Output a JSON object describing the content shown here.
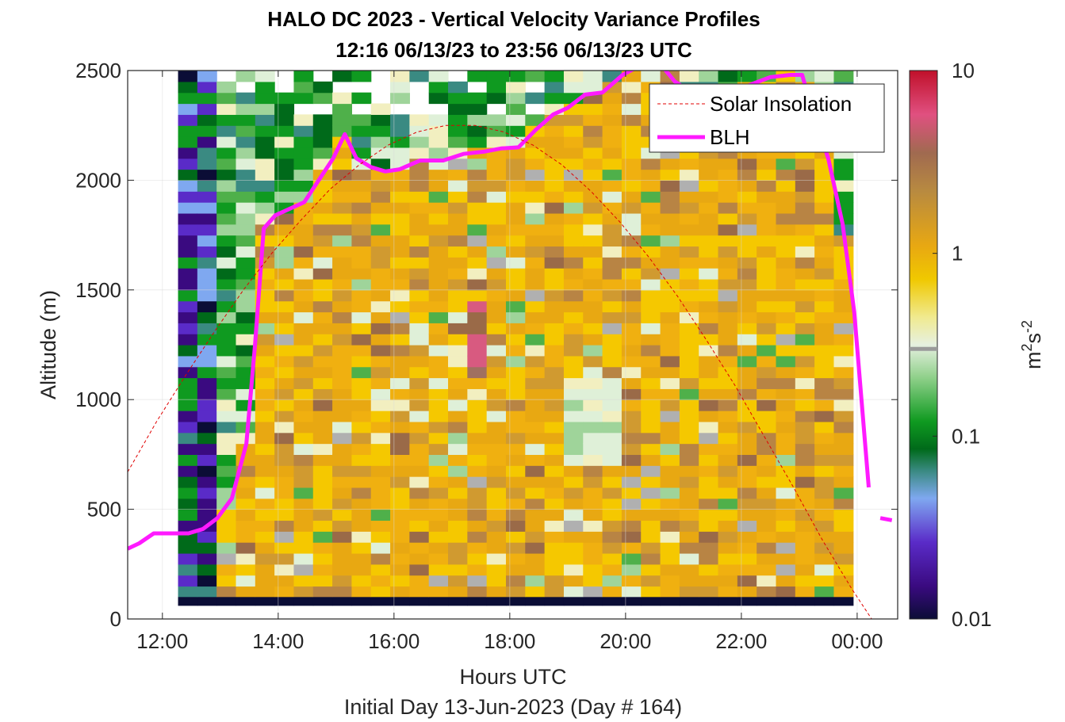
{
  "chart_data": {
    "type": "heatmap",
    "title": "HALO DC 2023 - Vertical Velocity Variance Profiles",
    "subtitle": "12:16 06/13/23 to 23:56 06/13/23  UTC",
    "xlabel": "Hours UTC",
    "footer": "Initial Day 13-Jun-2023 (Day # 164)",
    "ylabel": "Altitude (m)",
    "xlim": [
      11.4,
      24.7
    ],
    "ylim": [
      0,
      2500
    ],
    "x_ticks": [
      12,
      14,
      16,
      18,
      20,
      22,
      24
    ],
    "x_tick_labels": [
      "12:00",
      "14:00",
      "16:00",
      "18:00",
      "20:00",
      "22:00",
      "00:00"
    ],
    "y_ticks": [
      0,
      500,
      1000,
      1500,
      2000,
      2500
    ],
    "y_tick_labels": [
      "0",
      "500",
      "1000",
      "1500",
      "2000",
      "2500"
    ],
    "grid": true,
    "colorbar": {
      "scale": "log",
      "range": [
        0.01,
        10
      ],
      "ticks": [
        0.01,
        0.1,
        1,
        10
      ],
      "tick_labels": [
        "0.01",
        "0.1",
        "1",
        "10"
      ],
      "label_base": "m",
      "label_sup1": "2",
      "label_mid": "s",
      "label_sup2": "-2",
      "marker_value": 0.3
    },
    "heatmap_time_range": [
      12.27,
      23.93
    ],
    "heatmap_alt_range": [
      100,
      2500
    ],
    "legend": {
      "placement": "top-right",
      "entries": [
        {
          "label": "Solar Insolation",
          "style": "dashed",
          "color": "#e00000"
        },
        {
          "label": "BLH",
          "style": "solid",
          "color": "#ff1aff"
        }
      ]
    },
    "series": [
      {
        "name": "BLH",
        "color": "#ff1aff",
        "x": [
          11.4,
          11.6,
          11.85,
          12.1,
          12.45,
          12.7,
          12.95,
          13.2,
          13.45,
          13.6,
          13.75,
          13.95,
          14.2,
          14.45,
          14.7,
          14.95,
          15.15,
          15.35,
          15.6,
          15.85,
          16.1,
          16.45,
          16.85,
          17.2,
          17.55,
          17.85,
          18.15,
          18.45,
          18.75,
          19.0,
          19.3,
          19.6,
          19.95,
          20.3,
          20.6,
          20.85,
          21.15,
          21.5,
          21.85,
          22.2,
          22.5,
          22.85,
          23.05,
          23.25,
          23.5,
          23.75,
          23.95,
          24.2
        ],
        "y": [
          320,
          345,
          390,
          390,
          390,
          410,
          460,
          550,
          800,
          1250,
          1780,
          1840,
          1870,
          1900,
          2000,
          2100,
          2210,
          2100,
          2060,
          2040,
          2050,
          2090,
          2090,
          2120,
          2130,
          2145,
          2150,
          2230,
          2300,
          2330,
          2390,
          2400,
          2480,
          2530,
          2530,
          2450,
          2400,
          2400,
          2400,
          2440,
          2470,
          2480,
          2480,
          2300,
          2100,
          1800,
          1400,
          600
        ]
      },
      {
        "name": "BLH",
        "color": "#ff1aff",
        "x": [
          24.4,
          24.6
        ],
        "y": [
          460,
          450
        ]
      },
      {
        "name": "Solar Insolation",
        "color": "#e00000",
        "x": [
          11.4,
          11.9,
          12.4,
          12.9,
          13.4,
          13.9,
          14.4,
          14.9,
          15.4,
          15.9,
          16.4,
          16.9,
          17.4,
          17.9,
          18.4,
          18.9,
          19.4,
          19.9,
          20.4,
          20.9,
          21.4,
          21.9,
          22.4,
          22.9,
          23.4,
          23.9,
          24.4,
          24.7
        ],
        "y": [
          670,
          900,
          1110,
          1310,
          1500,
          1670,
          1820,
          1960,
          2070,
          2160,
          2220,
          2250,
          2250,
          2220,
          2160,
          2070,
          1950,
          1810,
          1650,
          1470,
          1270,
          1060,
          830,
          600,
          360,
          140,
          -60,
          -200
        ]
      }
    ]
  }
}
